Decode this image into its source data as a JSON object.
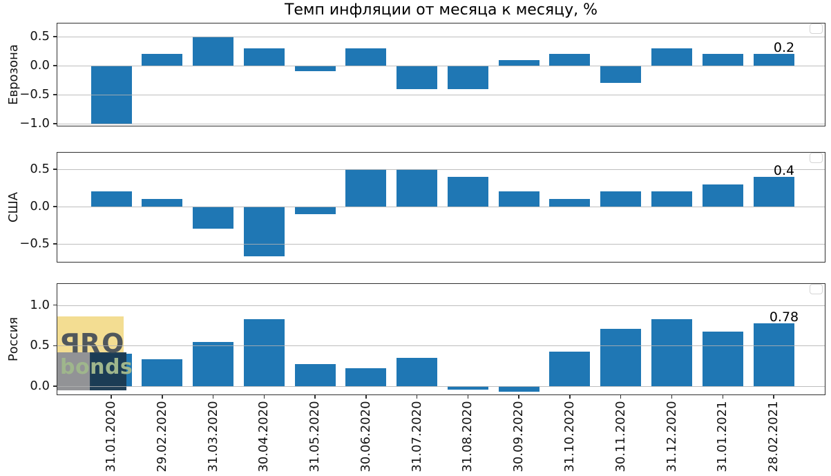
{
  "title": "Темп инфляции от месяца к месяцу, %",
  "watermark": {
    "top_text": "PRO",
    "bottom_text": "bonds",
    "colors": {
      "yellow_box": "#f2dc8e",
      "gray_box": "#8e8f92",
      "navy_box": "#1b3a52",
      "pro_text": "#50575c",
      "bonds_text": "#9fb68c"
    }
  },
  "chart_data": {
    "type": "bar",
    "title": "Темп инфляции от месяца к месяцу, %",
    "xlabel": "",
    "bar_color": "#1f77b4",
    "background_color": "#ffffff",
    "grid": true,
    "legend": "empty rounded box, upper-right corner of each subplot",
    "categories": [
      "31.01.2020",
      "29.02.2020",
      "31.03.2020",
      "30.04.2020",
      "31.05.2020",
      "30.06.2020",
      "31.07.2020",
      "31.08.2020",
      "30.09.2020",
      "31.10.2020",
      "30.11.2020",
      "31.12.2020",
      "31.01.2021",
      "28.02.2021"
    ],
    "panels": [
      {
        "name": "Еврозона",
        "values": [
          -1.0,
          0.2,
          0.5,
          0.3,
          -0.1,
          0.3,
          -0.4,
          -0.4,
          0.1,
          0.2,
          -0.3,
          0.3,
          0.2,
          0.2
        ],
        "yticks": [
          0.5,
          0.0,
          -0.5,
          -1.0
        ],
        "ylim": [
          -1.05,
          0.74
        ],
        "last_value_label": "0.2"
      },
      {
        "name": "США",
        "values": [
          0.2,
          0.1,
          -0.3,
          -0.67,
          -0.1,
          0.5,
          0.5,
          0.4,
          0.2,
          0.1,
          0.2,
          0.2,
          0.3,
          0.4
        ],
        "yticks": [
          0.5,
          0.0,
          -0.5
        ],
        "ylim": [
          -0.75,
          0.73
        ],
        "last_value_label": "0.4"
      },
      {
        "name": "Россия",
        "values": [
          0.4,
          0.33,
          0.55,
          0.83,
          0.27,
          0.22,
          0.35,
          -0.04,
          -0.07,
          0.43,
          0.71,
          0.83,
          0.67,
          0.78
        ],
        "yticks": [
          1.0,
          0.5,
          0.0
        ],
        "ylim": [
          -0.11,
          1.27
        ],
        "last_value_label": "0.78"
      }
    ]
  }
}
